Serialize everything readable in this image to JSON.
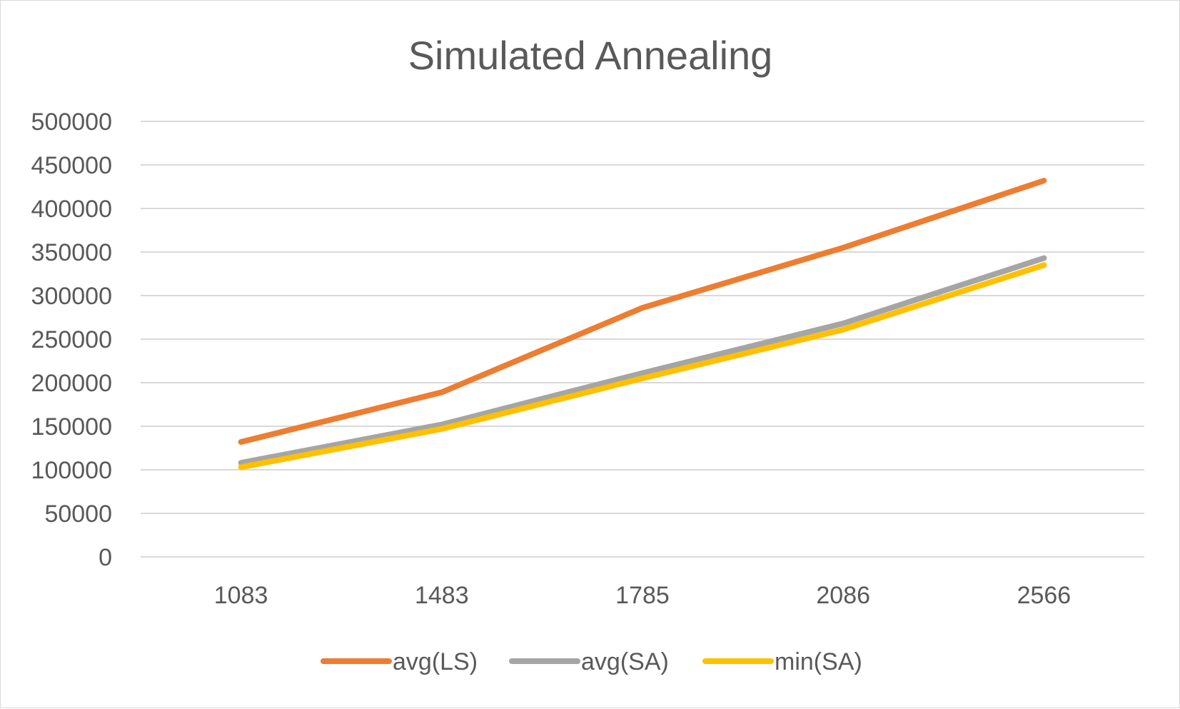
{
  "chart_data": {
    "type": "line",
    "title": "Simulated Annealing",
    "xlabel": "",
    "ylabel": "",
    "categories": [
      "1083",
      "1483",
      "1785",
      "2086",
      "2566"
    ],
    "y_ticks": [
      "0",
      "50000",
      "100000",
      "150000",
      "200000",
      "250000",
      "300000",
      "350000",
      "400000",
      "450000",
      "500000"
    ],
    "ylim": [
      0,
      500000
    ],
    "grid": true,
    "legend_position": "bottom",
    "series": [
      {
        "name": "avg(LS)",
        "color": "#ED7D31",
        "values": [
          132000,
          189000,
          286000,
          355000,
          432000
        ]
      },
      {
        "name": "avg(SA)",
        "color": "#A5A5A5",
        "values": [
          108000,
          152000,
          211000,
          268000,
          343000
        ]
      },
      {
        "name": "min(SA)",
        "color": "#FFC000",
        "values": [
          103000,
          147000,
          205000,
          261000,
          335000
        ]
      }
    ]
  }
}
